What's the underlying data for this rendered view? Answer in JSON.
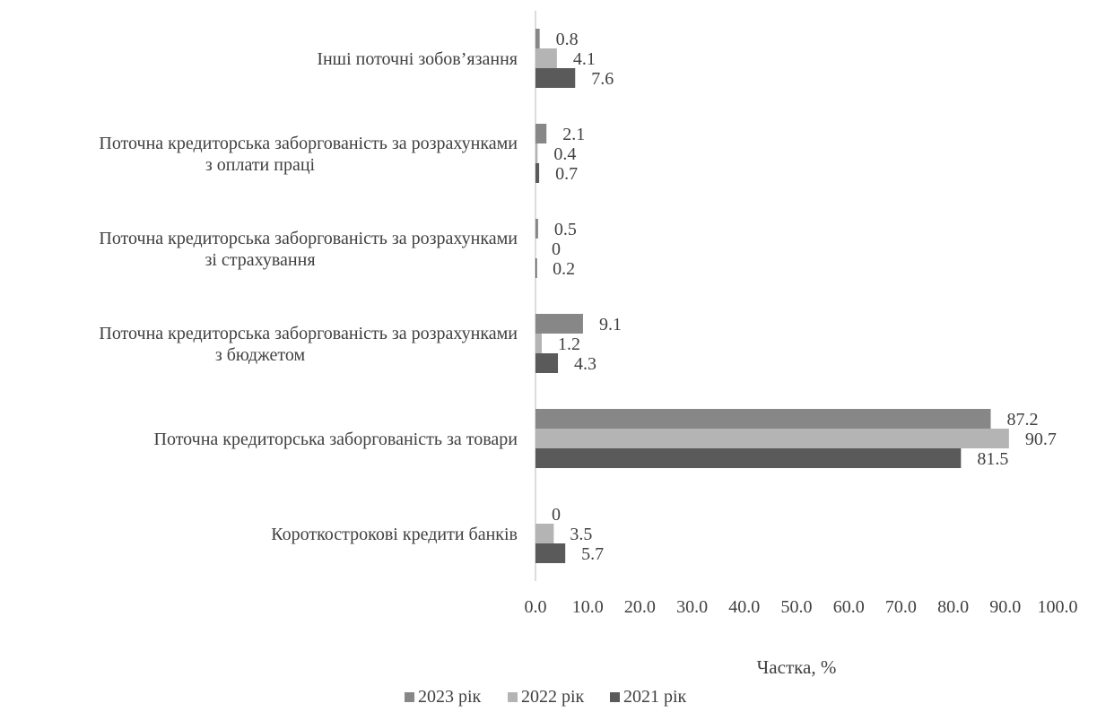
{
  "chart_data": {
    "type": "bar",
    "orientation": "horizontal",
    "categories": [
      [
        "Інші поточні зобов’язання"
      ],
      [
        "Поточна кредиторська заборгованість за розрахунками",
        "з оплати праці"
      ],
      [
        "Поточна кредиторська заборгованість за розрахунками",
        "зі страхування"
      ],
      [
        "Поточна кредиторська заборгованість за розрахунками",
        "з бюджетом"
      ],
      [
        "Поточна кредиторська заборгованість за товари"
      ],
      [
        "Короткострокові кредити банків"
      ]
    ],
    "series": [
      {
        "name": "2023 рік",
        "color": "#878787",
        "values": [
          0.8,
          2.1,
          0.5,
          9.1,
          87.2,
          0
        ],
        "labels": [
          "0.8",
          "2.1",
          "0.5",
          "9.1",
          "87.2",
          "0"
        ]
      },
      {
        "name": "2022 рік",
        "color": "#b4b4b4",
        "values": [
          4.1,
          0.4,
          0,
          1.2,
          90.7,
          3.5
        ],
        "labels": [
          "4.1",
          "0.4",
          "0",
          "1.2",
          "90.7",
          "3.5"
        ]
      },
      {
        "name": "2021 рік",
        "color": "#5a5a5a",
        "values": [
          7.6,
          0.7,
          0.2,
          4.3,
          81.5,
          5.7
        ],
        "labels": [
          "7.6",
          "0.7",
          "0.2",
          "4.3",
          "81.5",
          "5.7"
        ]
      }
    ],
    "xlabel": "Частка, %",
    "xlim": [
      0,
      100
    ],
    "xticks": [
      "0.0",
      "10.0",
      "20.0",
      "30.0",
      "40.0",
      "50.0",
      "60.0",
      "70.0",
      "80.0",
      "90.0",
      "100.0"
    ],
    "grid": false,
    "legend": "bottom"
  }
}
